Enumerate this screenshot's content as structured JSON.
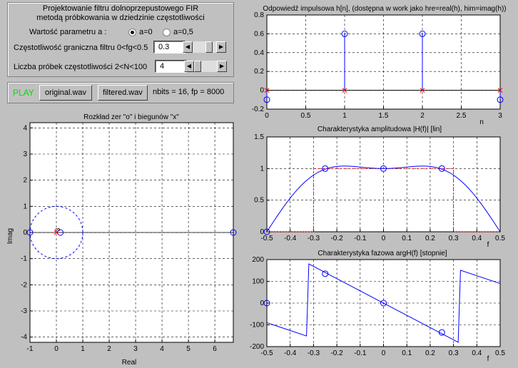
{
  "panel1": {
    "title_line1": "Projektowanie filtru dolnoprzepustowego FIR",
    "title_line2": "metodą próbkowania w dziedzinie częstotliwości",
    "param_label": "Wartość parametru a :",
    "radio1_label": "a=0",
    "radio2_label": "a=0,5",
    "fg_label": "Częstotliwość graniczna filtru 0<fg<0.5",
    "fg_value": "0.3",
    "n_label": "Liczba próbek częstotliwości 2<N<100",
    "n_value": "4"
  },
  "panel2": {
    "play_label": "PLAY",
    "original_button": "original.wav",
    "filtered_button": "filtered.wav",
    "info": "nbits = 16,   fp = 8000"
  },
  "charts": {
    "zp": {
      "title": "Rozkład zer \"o\" i biegunów \"x\"",
      "xlabel": "Real",
      "ylabel": "Imag",
      "xticks": [
        "-1",
        "0",
        "1",
        "2",
        "3",
        "4",
        "5",
        "6"
      ],
      "yticks": [
        "4",
        "3",
        "2",
        "1",
        "0",
        "-1",
        "-2",
        "-3",
        "-4"
      ],
      "pole_count_label": "3"
    },
    "impulse": {
      "title": "Odpowiedź impulsowa h[n], (dostępna w work jako hre=real(h), him=imag(h))",
      "xlabel": "n",
      "xticks": [
        "0",
        "0.5",
        "1",
        "1.5",
        "2",
        "2.5",
        "3"
      ],
      "yticks": [
        "0.8",
        "0.6",
        "0.4",
        "0.2",
        "0",
        "-0.2"
      ]
    },
    "amp": {
      "title": "Charakterystyka amplitudowa |H(f)| [lin]",
      "xlabel": "f",
      "xticks": [
        "-0.5",
        "-0.4",
        "-0.3",
        "-0.2",
        "-0.1",
        "0",
        "0.1",
        "0.2",
        "0.3",
        "0.4",
        "0.5"
      ],
      "yticks": [
        "1.5",
        "1",
        "0.5",
        "0"
      ]
    },
    "phase": {
      "title": "Charakterystyka fazowa argH(f) [stopnie]",
      "xlabel": "f",
      "xticks": [
        "-0.5",
        "-0.4",
        "-0.3",
        "-0.2",
        "-0.1",
        "0",
        "0.1",
        "0.2",
        "0.3",
        "0.4",
        "0.5"
      ],
      "yticks": [
        "200",
        "100",
        "0",
        "-100",
        "-200"
      ]
    }
  },
  "chart_data": [
    {
      "type": "scatter",
      "title": "Rozkład zer \"o\" i biegunów \"x\"",
      "xlabel": "Real",
      "ylabel": "Imag",
      "xlim": [
        -1,
        6.7
      ],
      "ylim": [
        -4.2,
        4.2
      ],
      "zeros": [
        [
          -1,
          0
        ],
        [
          0.15,
          0
        ],
        [
          6.7,
          0
        ]
      ],
      "poles": [
        [
          0,
          0
        ]
      ],
      "pole_multiplicity": 3,
      "unit_circle": true,
      "grid": true
    },
    {
      "type": "stem",
      "title": "Odpowiedź impulsowa h[n], (dostępna w work jako hre=real(h), him=imag(h))",
      "xlabel": "n",
      "xlim": [
        0,
        3
      ],
      "ylim": [
        -0.2,
        0.8
      ],
      "n": [
        0,
        1,
        2,
        3
      ],
      "real": [
        -0.1,
        0.6,
        0.6,
        -0.1
      ],
      "imag": [
        0,
        0,
        0,
        0
      ],
      "grid": true
    },
    {
      "type": "line",
      "title": "Charakterystyka amplitudowa |H(f)| [lin]",
      "xlabel": "f",
      "xlim": [
        -0.5,
        0.5
      ],
      "ylim": [
        0,
        1.5
      ],
      "samples_f": [
        -0.5,
        -0.25,
        0,
        0.25
      ],
      "samples_value": [
        0,
        1,
        1,
        1
      ],
      "ideal_band_edges": [
        -0.3,
        0.3
      ],
      "grid": true
    },
    {
      "type": "line",
      "title": "Charakterystyka fazowa argH(f) [stopnie]",
      "xlabel": "f",
      "xlim": [
        -0.5,
        0.5
      ],
      "ylim": [
        -200,
        200
      ],
      "samples_f": [
        -0.5,
        -0.25,
        0,
        0.25
      ],
      "samples_value": [
        0,
        135,
        0,
        -135
      ],
      "grid": true
    }
  ]
}
